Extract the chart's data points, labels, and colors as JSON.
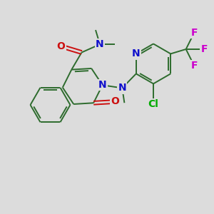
{
  "bg_color": "#dcdcdc",
  "bond_color": "#2d6b2d",
  "N_color": "#1010cc",
  "O_color": "#cc1010",
  "F_color": "#cc00cc",
  "Cl_color": "#00aa00",
  "line_width": 1.4,
  "figsize": [
    3.0,
    3.0
  ],
  "dpi": 100,
  "xlim": [
    0,
    10
  ],
  "ylim": [
    0,
    10
  ]
}
